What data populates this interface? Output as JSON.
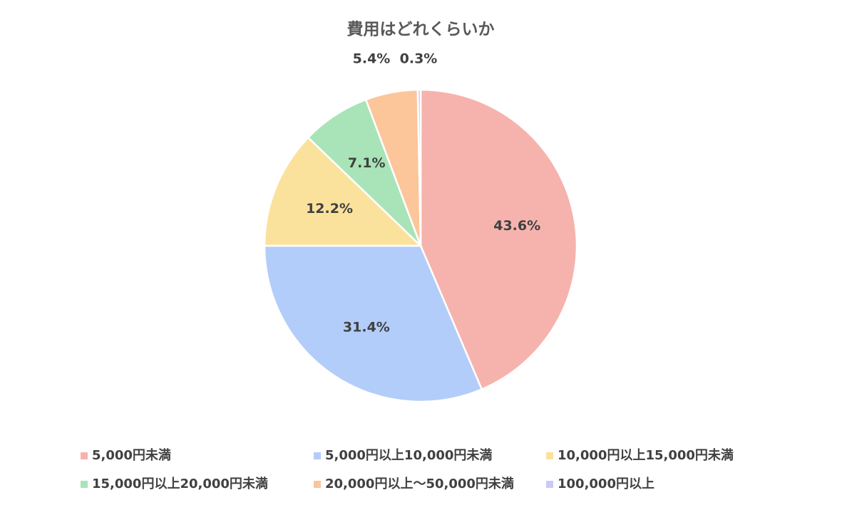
{
  "chart_data": {
    "type": "pie",
    "title": "費用はどれくらいか",
    "categories": [
      "5,000円未満",
      "5,000円以上10,000円未満",
      "10,000円以上15,000円未満",
      "15,000円以上20,000円未満",
      "20,000円以上～50,000円未満",
      "100,000円以上"
    ],
    "values": [
      43.6,
      31.4,
      12.2,
      7.1,
      5.4,
      0.3
    ],
    "value_labels": [
      "43.6%",
      "31.4%",
      "12.2%",
      "7.1%",
      "5.4%",
      "0.3%"
    ],
    "colors": [
      "#f6b3ae",
      "#b3cdfa",
      "#fbe29c",
      "#a8e4b8",
      "#fcc59a",
      "#c9c9fb"
    ],
    "legend": "bottom"
  }
}
